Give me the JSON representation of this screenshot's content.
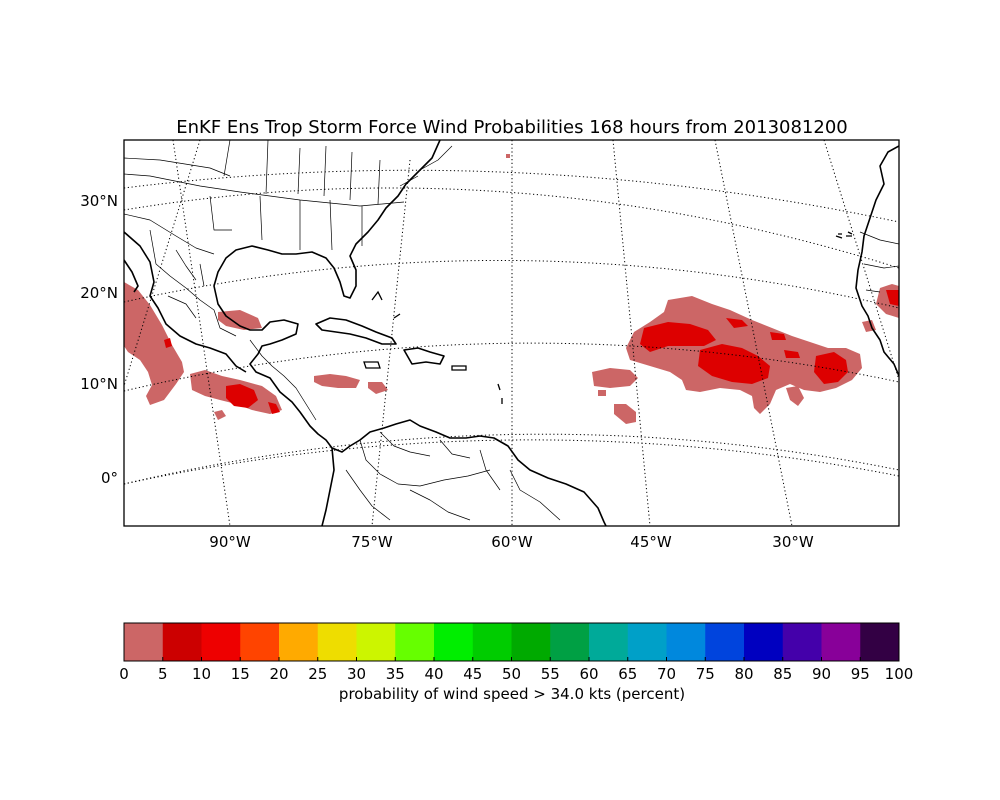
{
  "title": "EnKF Ens Trop Storm Force Wind Probabilities 168 hours from 2013081200",
  "lat_labels": [
    "30°N",
    "20°N",
    "10°N",
    "0°"
  ],
  "lon_labels": [
    "90°W",
    "75°W",
    "60°W",
    "45°W",
    "30°W"
  ],
  "colorbar": {
    "label": "probability of wind speed > 34.0 kts (percent)",
    "ticks": [
      "0",
      "5",
      "10",
      "15",
      "20",
      "25",
      "30",
      "35",
      "40",
      "45",
      "50",
      "55",
      "60",
      "65",
      "70",
      "75",
      "80",
      "85",
      "90",
      "95",
      "100"
    ],
    "colors": [
      "#cc6666",
      "#cc0000",
      "#ee0000",
      "#ff4400",
      "#ffaa00",
      "#eedd00",
      "#ccf500",
      "#66ff00",
      "#00ee00",
      "#00cc00",
      "#00aa00",
      "#00a044",
      "#00aa99",
      "#00a0c8",
      "#0088dd",
      "#0044dd",
      "#0000c0",
      "#4400aa",
      "#880099",
      "#330044"
    ]
  },
  "probability_colors": {
    "low": "#cc6666",
    "high": "#dd0000"
  }
}
